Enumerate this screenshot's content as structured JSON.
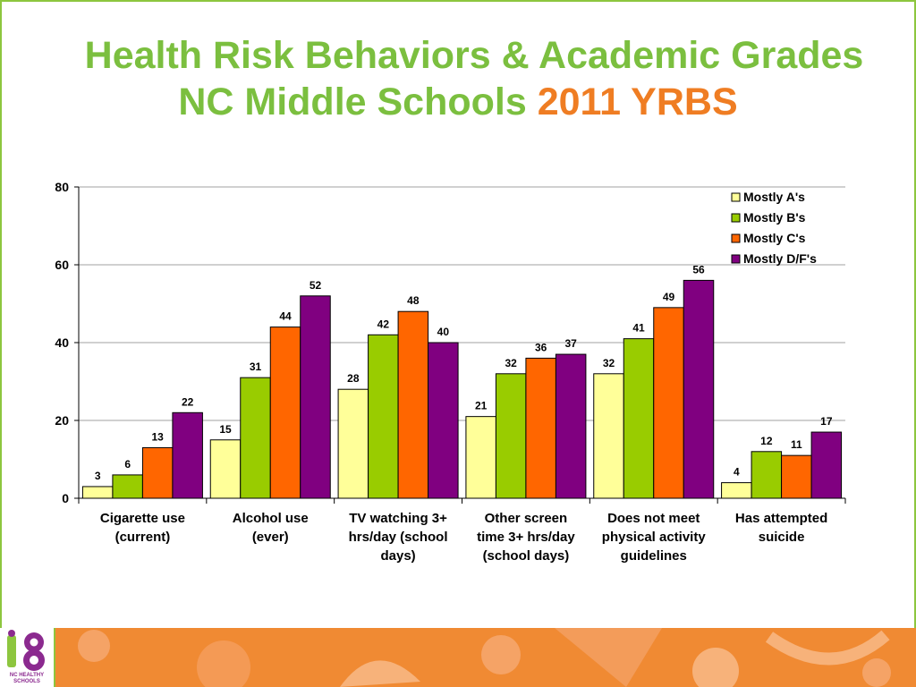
{
  "title": {
    "line1": "Health Risk Behaviors & Academic Grades",
    "line2_main": "NC Middle Schools",
    "line2_accent": "2011 YRBS"
  },
  "logo": {
    "line1": "NC HEALTHY",
    "line2": "SCHOOLS"
  },
  "colors": {
    "title_green": "#7bbf3f",
    "title_orange": "#ef7d23",
    "frame_green": "#8dc63f",
    "footer_orange": "#f08a33"
  },
  "chart_data": {
    "type": "bar",
    "title": "",
    "xlabel": "",
    "ylabel": "",
    "ylim": [
      0,
      80
    ],
    "yticks": [
      0,
      20,
      40,
      60,
      80
    ],
    "grid": true,
    "legend_position": "top-right",
    "categories": [
      [
        "Cigarette use",
        "(current)"
      ],
      [
        "Alcohol use",
        "(ever)"
      ],
      [
        "TV watching 3+",
        "hrs/day (school",
        "days)"
      ],
      [
        "Other screen",
        "time 3+ hrs/day",
        "(school days)"
      ],
      [
        "Does not meet",
        "physical activity",
        "guidelines"
      ],
      [
        "Has attempted",
        "suicide"
      ]
    ],
    "series": [
      {
        "name": "Mostly A's",
        "color": "#ffff99",
        "values": [
          3,
          15,
          28,
          21,
          32,
          4
        ]
      },
      {
        "name": "Mostly B's",
        "color": "#99cc00",
        "values": [
          6,
          31,
          42,
          32,
          41,
          12
        ]
      },
      {
        "name": "Mostly C's",
        "color": "#ff6600",
        "values": [
          13,
          44,
          48,
          36,
          49,
          11
        ]
      },
      {
        "name": "Mostly D/F's",
        "color": "#800080",
        "values": [
          22,
          52,
          40,
          37,
          56,
          17
        ]
      }
    ],
    "data_labels": [
      [
        "3",
        "15",
        "28",
        "21",
        "32",
        "4"
      ],
      [
        "6",
        "31",
        "42",
        "32",
        "41",
        "12"
      ],
      [
        "13",
        "44",
        "48",
        "36",
        "49",
        "11"
      ],
      [
        "22",
        "52",
        "40",
        "37",
        "56",
        "17"
      ]
    ]
  }
}
